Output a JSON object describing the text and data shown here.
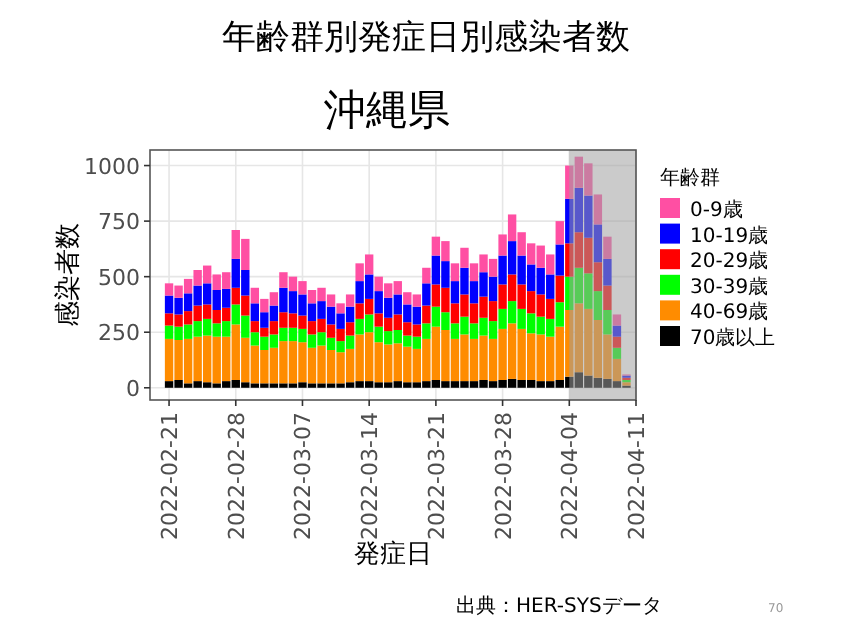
{
  "chart_data": {
    "type": "bar",
    "stacked": true,
    "title": "年齢群別発症日別感染者数",
    "subtitle": "沖縄県",
    "xlabel": "発症日",
    "ylabel": "感染者数",
    "legend_title": "年齢群",
    "legend": "right",
    "grid": true,
    "x": [
      "2022-02-21",
      "2022-02-22",
      "2022-02-23",
      "2022-02-24",
      "2022-02-25",
      "2022-02-26",
      "2022-02-27",
      "2022-02-28",
      "2022-03-01",
      "2022-03-02",
      "2022-03-03",
      "2022-03-04",
      "2022-03-05",
      "2022-03-06",
      "2022-03-07",
      "2022-03-08",
      "2022-03-09",
      "2022-03-10",
      "2022-03-11",
      "2022-03-12",
      "2022-03-13",
      "2022-03-14",
      "2022-03-15",
      "2022-03-16",
      "2022-03-17",
      "2022-03-18",
      "2022-03-19",
      "2022-03-20",
      "2022-03-21",
      "2022-03-22",
      "2022-03-23",
      "2022-03-24",
      "2022-03-25",
      "2022-03-26",
      "2022-03-27",
      "2022-03-28",
      "2022-03-29",
      "2022-03-30",
      "2022-03-31",
      "2022-04-01",
      "2022-04-02",
      "2022-04-03",
      "2022-04-04",
      "2022-04-05",
      "2022-04-06",
      "2022-04-07",
      "2022-04-08",
      "2022-04-09",
      "2022-04-10"
    ],
    "xlim": [
      "2022-02-19",
      "2022-04-11"
    ],
    "xticks": [
      "2022-02-21",
      "2022-02-28",
      "2022-03-07",
      "2022-03-14",
      "2022-03-21",
      "2022-03-28",
      "2022-04-04",
      "2022-04-11"
    ],
    "ylim": [
      -55,
      1070
    ],
    "yticks": [
      0,
      250,
      500,
      750,
      1000
    ],
    "bands": [
      {
        "axis": "x",
        "from": "2022-04-04",
        "to": "2022-04-11",
        "color": "#a0a0a0"
      }
    ],
    "annotations": [
      "出典：HER-SYSデータ",
      "70"
    ],
    "series": [
      {
        "name": "70歳以上",
        "color": "#000000",
        "values": [
          30,
          35,
          20,
          30,
          25,
          20,
          30,
          35,
          25,
          20,
          20,
          20,
          20,
          20,
          25,
          20,
          20,
          20,
          20,
          25,
          30,
          30,
          25,
          25,
          30,
          25,
          25,
          30,
          35,
          30,
          30,
          30,
          30,
          35,
          30,
          35,
          40,
          35,
          35,
          30,
          30,
          35,
          50,
          70,
          55,
          45,
          40,
          30,
          10
        ]
      },
      {
        "name": "40-69歳",
        "color": "#ff8c00",
        "values": [
          190,
          180,
          200,
          200,
          210,
          210,
          200,
          250,
          200,
          170,
          150,
          160,
          190,
          190,
          180,
          160,
          170,
          150,
          140,
          150,
          210,
          220,
          180,
          170,
          170,
          160,
          150,
          190,
          240,
          230,
          190,
          210,
          190,
          200,
          190,
          230,
          250,
          230,
          210,
          210,
          200,
          240,
          300,
          310,
          300,
          260,
          200,
          100,
          15
        ]
      },
      {
        "name": "30-39歳",
        "color": "#00ff00",
        "values": [
          60,
          60,
          65,
          70,
          75,
          60,
          70,
          90,
          100,
          60,
          60,
          60,
          60,
          60,
          60,
          60,
          60,
          55,
          50,
          60,
          70,
          80,
          70,
          60,
          60,
          50,
          55,
          70,
          90,
          80,
          70,
          80,
          70,
          80,
          80,
          90,
          100,
          90,
          90,
          80,
          80,
          110,
          150,
          160,
          160,
          130,
          110,
          50,
          10
        ]
      },
      {
        "name": "20-29歳",
        "color": "#ff0000",
        "values": [
          55,
          55,
          60,
          70,
          65,
          60,
          60,
          75,
          90,
          50,
          40,
          60,
          70,
          65,
          60,
          60,
          60,
          60,
          55,
          60,
          70,
          70,
          60,
          60,
          70,
          60,
          55,
          80,
          100,
          110,
          90,
          100,
          90,
          95,
          90,
          110,
          120,
          110,
          100,
          100,
          90,
          120,
          150,
          160,
          160,
          130,
          110,
          50,
          10
        ]
      },
      {
        "name": "10-19歳",
        "color": "#0000ff",
        "values": [
          80,
          75,
          80,
          90,
          95,
          90,
          85,
          130,
          115,
          80,
          70,
          70,
          110,
          100,
          95,
          80,
          80,
          80,
          70,
          70,
          100,
          110,
          100,
          90,
          90,
          80,
          80,
          100,
          130,
          120,
          100,
          120,
          100,
          110,
          110,
          130,
          150,
          130,
          120,
          120,
          110,
          140,
          200,
          200,
          190,
          170,
          120,
          50,
          10
        ]
      },
      {
        "name": "0-9歳",
        "color": "#ff4fa3",
        "values": [
          55,
          55,
          65,
          70,
          80,
          70,
          75,
          130,
          140,
          70,
          60,
          60,
          70,
          65,
          60,
          60,
          60,
          55,
          45,
          55,
          80,
          90,
          65,
          65,
          60,
          55,
          55,
          70,
          85,
          90,
          80,
          90,
          80,
          80,
          80,
          95,
          120,
          105,
          95,
          100,
          90,
          105,
          150,
          140,
          145,
          135,
          100,
          50,
          5
        ]
      }
    ]
  }
}
